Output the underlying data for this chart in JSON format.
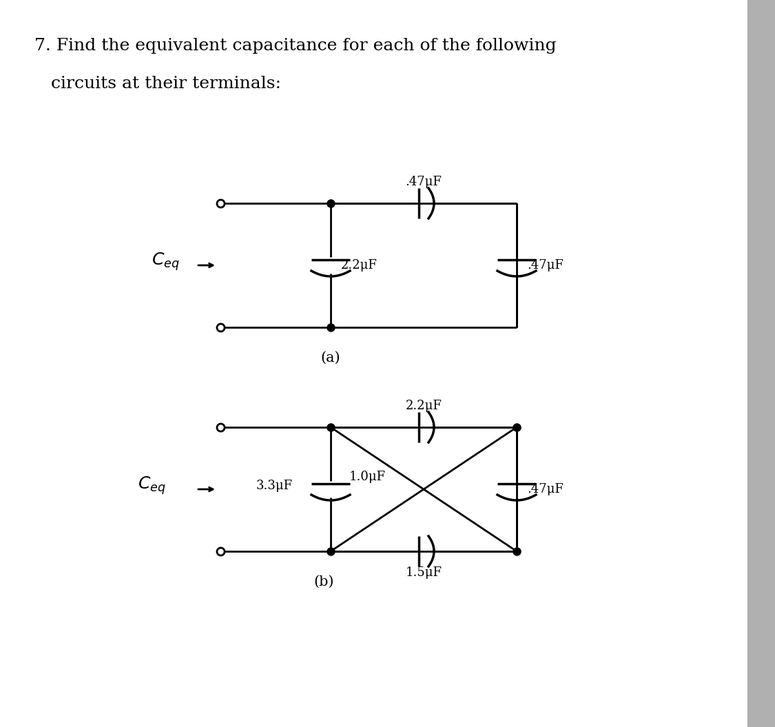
{
  "title_line1": "7. Find the equivalent capacitance for each of the following",
  "title_line2": "   circuits at their terminals:",
  "bg_color": "#ffffff",
  "line_color": "#000000",
  "line_width": 2.0,
  "dot_size": 8,
  "label_a": "(a)",
  "label_b": "(b)",
  "ceq_label": "C",
  "ceq_sub": "eq",
  "cap_22_a": "2.2μF",
  "cap_47_top": ".47μF",
  "cap_47_right": ".47μF",
  "cap_33": "3.3μF",
  "cap_22_b": "2.2μF",
  "cap_10": "1.0μF",
  "cap_47_b": ".47μF",
  "cap_15": "1.5μF"
}
